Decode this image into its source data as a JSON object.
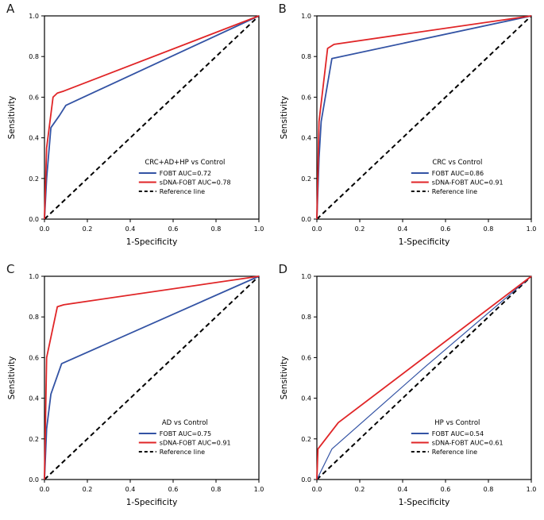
{
  "figure": {
    "background": "#ffffff"
  },
  "chart_data": [
    {
      "type": "line",
      "panel_label": "A",
      "title": "CRC+AD+HP vs Control",
      "xlabel": "1-Specificity",
      "ylabel": "Sensitivity",
      "xlim": [
        0,
        1
      ],
      "ylim": [
        0,
        1
      ],
      "grid": false,
      "legend_position": "lower-right",
      "tick_values": [
        0,
        0.2,
        0.4,
        0.6,
        0.8,
        1.0
      ],
      "tick_labels": [
        "0.0",
        "0.2",
        "0.4",
        "0.6",
        "0.8",
        "1.0"
      ],
      "series": [
        {
          "name": "FOBT AUC=0.72",
          "color": "#3353a4",
          "style": "solid",
          "stroke_width": 1.8,
          "points": [
            [
              0,
              0
            ],
            [
              0.01,
              0.2
            ],
            [
              0.03,
              0.45
            ],
            [
              0.07,
              0.51
            ],
            [
              0.1,
              0.56
            ],
            [
              1,
              1
            ]
          ]
        },
        {
          "name": "sDNA-FOBT AUC=0.78",
          "color": "#e02527",
          "style": "solid",
          "stroke_width": 1.8,
          "points": [
            [
              0,
              0
            ],
            [
              0.01,
              0.35
            ],
            [
              0.04,
              0.6
            ],
            [
              0.06,
              0.62
            ],
            [
              0.09,
              0.63
            ],
            [
              1,
              1
            ]
          ]
        },
        {
          "name": "Reference line",
          "color": "#000000",
          "style": "dashed",
          "stroke_width": 2,
          "points": [
            [
              0,
              0
            ],
            [
              1,
              1
            ]
          ]
        }
      ]
    },
    {
      "type": "line",
      "panel_label": "B",
      "title": "CRC vs Control",
      "xlabel": "1-Specificity",
      "ylabel": "Sensitivity",
      "xlim": [
        0,
        1
      ],
      "ylim": [
        0,
        1
      ],
      "grid": false,
      "legend_position": "lower-right",
      "tick_values": [
        0,
        0.2,
        0.4,
        0.6,
        0.8,
        1.0
      ],
      "tick_labels": [
        "0.0",
        "0.2",
        "0.4",
        "0.6",
        "0.8",
        "1.0"
      ],
      "series": [
        {
          "name": "FOBT AUC=0.86",
          "color": "#3353a4",
          "style": "solid",
          "stroke_width": 1.8,
          "points": [
            [
              0,
              0
            ],
            [
              0.01,
              0.3
            ],
            [
              0.02,
              0.48
            ],
            [
              0.07,
              0.79
            ],
            [
              1,
              1
            ]
          ]
        },
        {
          "name": "sDNA-FOBT AUC=0.91",
          "color": "#e02527",
          "style": "solid",
          "stroke_width": 1.8,
          "points": [
            [
              0,
              0
            ],
            [
              0.01,
              0.48
            ],
            [
              0.05,
              0.84
            ],
            [
              0.08,
              0.86
            ],
            [
              1,
              1
            ]
          ]
        },
        {
          "name": "Reference line",
          "color": "#000000",
          "style": "dashed",
          "stroke_width": 2,
          "points": [
            [
              0,
              0
            ],
            [
              1,
              1
            ]
          ]
        }
      ]
    },
    {
      "type": "line",
      "panel_label": "C",
      "title": "AD vs Control",
      "xlabel": "1-Specificity",
      "ylabel": "Sensitivity",
      "xlim": [
        0,
        1
      ],
      "ylim": [
        0,
        1
      ],
      "grid": false,
      "legend_position": "lower-right",
      "tick_values": [
        0,
        0.2,
        0.4,
        0.6,
        0.8,
        1.0
      ],
      "tick_labels": [
        "0.0",
        "0.2",
        "0.4",
        "0.6",
        "0.8",
        "1.0"
      ],
      "series": [
        {
          "name": "FOBT AUC=0.75",
          "color": "#3353a4",
          "style": "solid",
          "stroke_width": 1.8,
          "points": [
            [
              0,
              0
            ],
            [
              0.01,
              0.25
            ],
            [
              0.03,
              0.42
            ],
            [
              0.08,
              0.57
            ],
            [
              1,
              1
            ]
          ]
        },
        {
          "name": "sDNA-FOBT AUC=0.91",
          "color": "#e02527",
          "style": "solid",
          "stroke_width": 1.8,
          "points": [
            [
              0,
              0
            ],
            [
              0.01,
              0.6
            ],
            [
              0.06,
              0.85
            ],
            [
              0.09,
              0.86
            ],
            [
              1,
              1
            ]
          ]
        },
        {
          "name": "Reference line",
          "color": "#000000",
          "style": "dashed",
          "stroke_width": 2,
          "points": [
            [
              0,
              0
            ],
            [
              1,
              1
            ]
          ]
        }
      ]
    },
    {
      "type": "line",
      "panel_label": "D",
      "title": "HP vs Control",
      "xlabel": "1-Specificity",
      "ylabel": "Sensitivity",
      "xlim": [
        0,
        1
      ],
      "ylim": [
        0,
        1
      ],
      "grid": false,
      "legend_position": "lower-right",
      "tick_values": [
        0,
        0.2,
        0.4,
        0.6,
        0.8,
        1.0
      ],
      "tick_labels": [
        "0.0",
        "0.2",
        "0.4",
        "0.6",
        "0.8",
        "1.0"
      ],
      "series": [
        {
          "name": "FOBT AUC=0.54",
          "color": "#3353a4",
          "style": "solid",
          "stroke_width": 1.2,
          "points": [
            [
              0,
              0
            ],
            [
              0.07,
              0.15
            ],
            [
              0.5,
              0.55
            ],
            [
              1,
              1
            ]
          ]
        },
        {
          "name": "sDNA-FOBT AUC=0.61",
          "color": "#e02527",
          "style": "solid",
          "stroke_width": 1.8,
          "points": [
            [
              0,
              0
            ],
            [
              0.005,
              0.15
            ],
            [
              0.1,
              0.28
            ],
            [
              1,
              1
            ]
          ]
        },
        {
          "name": "Reference line",
          "color": "#000000",
          "style": "dashed",
          "stroke_width": 2,
          "points": [
            [
              0,
              0
            ],
            [
              1,
              1
            ]
          ]
        }
      ]
    }
  ]
}
